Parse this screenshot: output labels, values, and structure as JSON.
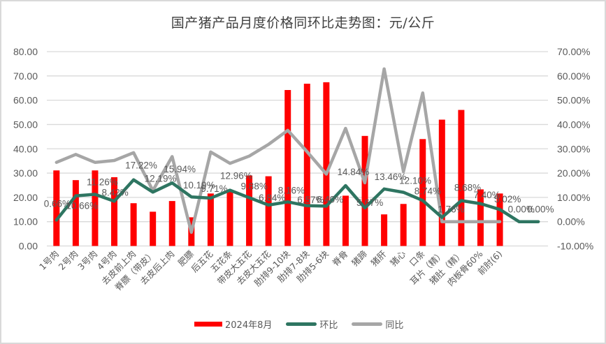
{
  "chart": {
    "title": "国产猪产品月度价格同环比走势图：元/公斤",
    "colors": {
      "bar": "#ff0000",
      "mom": "#2e7561",
      "yoy": "#a6a6a6",
      "grid": "#d9d9d9",
      "text": "#595959"
    }
  },
  "legend": {
    "bar_label": "2024年8月",
    "mom_label": "环比",
    "yoy_label": "同比"
  },
  "chart_data": {
    "type": "bar+line",
    "title": "国产猪产品月度价格同环比走势图：元/公斤",
    "xlabel": "",
    "ylabel": "",
    "y_left": {
      "range": [
        0,
        80
      ],
      "step": 10,
      "ticks": [
        "0.00",
        "10.00",
        "20.00",
        "30.00",
        "40.00",
        "50.00",
        "60.00",
        "70.00",
        "80.00"
      ]
    },
    "y_right": {
      "range": [
        -10,
        70
      ],
      "step": 10,
      "ticks": [
        "-10.00%",
        "0.00%",
        "10.00%",
        "20.00%",
        "30.00%",
        "40.00%",
        "50.00%",
        "60.00%",
        "70.00%"
      ]
    },
    "grid": true,
    "legend_position": "bottom",
    "categories": [
      "1号肉",
      "2号肉",
      "3号肉",
      "4号肉",
      "去皮前上肉",
      "脊膘（带皮）",
      "去皮后上肉",
      "肥膘",
      "后五花",
      "五花条",
      "带皮大五花",
      "去皮大五花",
      "肋排9-10块",
      "肋排7-8块",
      "肋排5-6块",
      "脊骨",
      "猪蹄",
      "猪肝",
      "猪心",
      "口条",
      "耳片（精）",
      "猪肚（精）",
      "肉板骨60%",
      "前肘(6)",
      "",
      ""
    ],
    "series": [
      {
        "name": "2024年8月",
        "type": "bar",
        "axis": "left",
        "values": [
          31.1,
          27.1,
          31.1,
          28.3,
          17.6,
          14.1,
          18.5,
          11.8,
          21.6,
          22.7,
          29.0,
          28.7,
          64.2,
          66.8,
          67.4,
          20.7,
          45.3,
          13.0,
          17.3,
          44.0,
          52.0,
          56.0,
          23.3,
          21.6,
          null,
          null
        ]
      },
      {
        "name": "环比",
        "type": "line",
        "axis": "right",
        "unit": "%",
        "values": [
          0.66,
          10.66,
          11.26,
          8.42,
          17.22,
          12.19,
          15.94,
          10.19,
          9.71,
          12.96,
          9.88,
          6.84,
          8.16,
          6.57,
          6.4,
          14.84,
          5.67,
          13.46,
          12.1,
          8.74,
          1.76,
          8.68,
          7.4,
          5.02,
          0.0,
          0.0
        ],
        "labels": [
          "0.66%",
          "10.66%",
          "11.26%",
          "8.42%",
          "17.22%",
          "12.19%",
          "15.94%",
          "10.19%",
          "9.71%",
          "12.96%",
          "9.88%",
          "6.84%",
          "8.16%",
          "6.57%",
          "6.40%",
          "14.84%",
          "5.67%",
          "13.46%",
          "12.10%",
          "8.74%",
          "1.76%",
          "8.68%",
          "7.40%",
          "5.02%",
          "0.00%",
          "0.00%"
        ]
      },
      {
        "name": "同比",
        "type": "line",
        "axis": "right",
        "unit": "%",
        "values": [
          24.4,
          27.7,
          24.4,
          25.2,
          28.4,
          12.8,
          26.8,
          -4.4,
          28.7,
          24.0,
          27.0,
          31.8,
          37.6,
          28.8,
          19.6,
          38.4,
          16.0,
          62.9,
          20.6,
          53.0,
          0,
          0,
          0,
          0,
          null,
          null
        ]
      }
    ]
  }
}
